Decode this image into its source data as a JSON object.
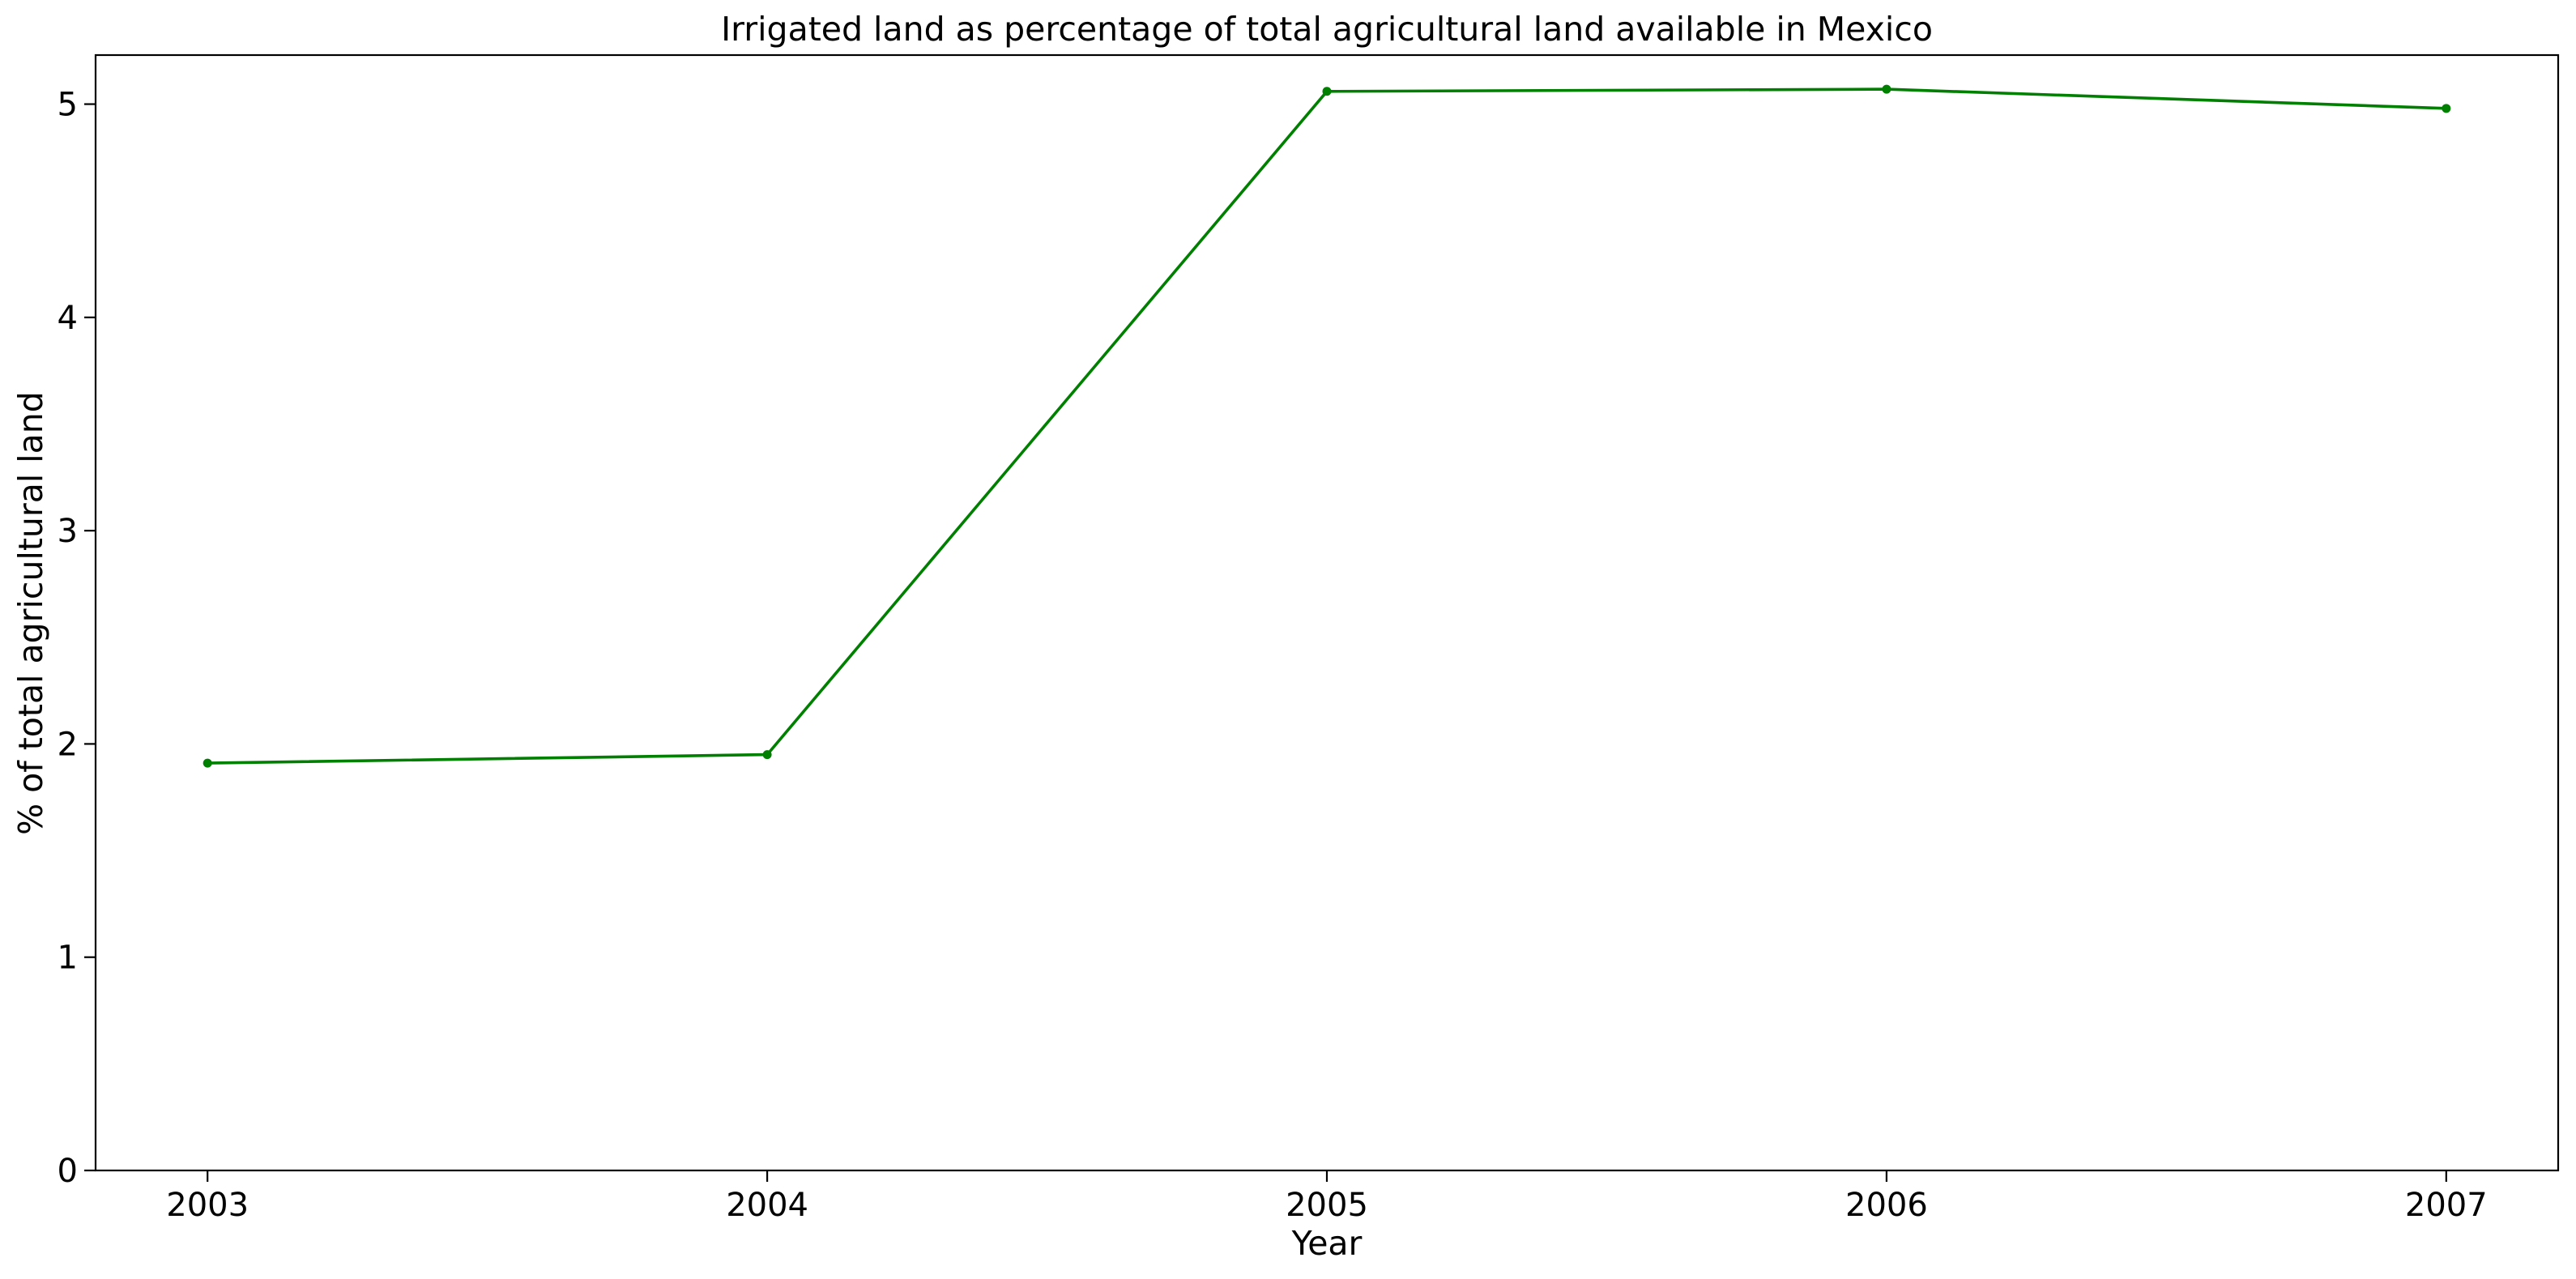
{
  "chart_data": {
    "type": "line",
    "title": "Irrigated land as percentage of total agricultural land available in Mexico",
    "xlabel": "Year",
    "ylabel": "% of total agricultural land",
    "x": [
      "2003",
      "2004",
      "2005",
      "2006",
      "2007"
    ],
    "series": [
      {
        "values": [
          1.91,
          1.95,
          5.06,
          5.07,
          4.98
        ],
        "color": "#008000"
      }
    ],
    "ylim": [
      0,
      5.23
    ],
    "yticks": [
      0,
      1,
      2,
      3,
      4,
      5
    ],
    "grid": false,
    "legend": "none"
  }
}
